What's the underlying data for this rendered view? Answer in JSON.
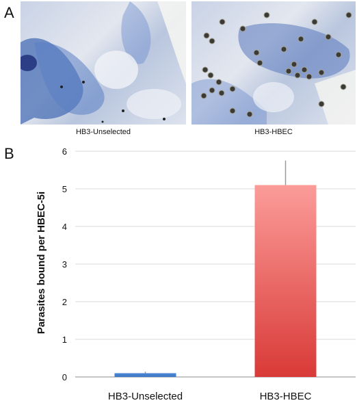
{
  "panels": {
    "a": {
      "letter": "A"
    },
    "b": {
      "letter": "B"
    }
  },
  "micrographs": [
    {
      "caption": "HB3-Unselected"
    },
    {
      "caption": "HB3-HBEC"
    }
  ],
  "chart_data": {
    "type": "bar",
    "categories": [
      "HB3-Unselected",
      "HB3-HBEC"
    ],
    "values": [
      0.1,
      5.1
    ],
    "error": [
      0.04,
      0.65
    ],
    "ylabel": "Parasites bound per HBEC-5i",
    "xlabel": "",
    "ylim": [
      0,
      6
    ],
    "yticks": [
      0,
      1,
      2,
      3,
      4,
      5,
      6
    ],
    "grid": true,
    "colors": [
      "#4a86d1",
      "#e8524f"
    ]
  }
}
